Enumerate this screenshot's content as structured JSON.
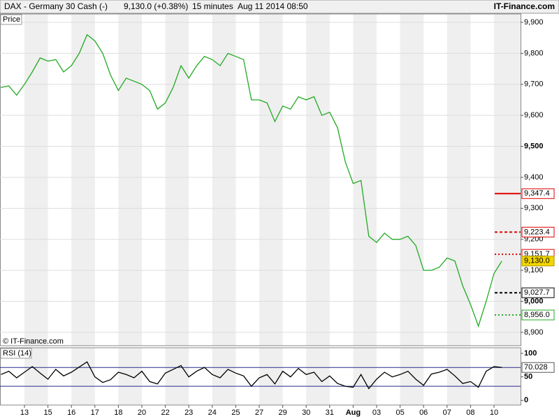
{
  "header": {
    "instrument": "DAX - Germany 30 Cash (-)",
    "quote": "9,130.0 (+0.38%)",
    "interval": "15 minutes",
    "datetime": "Aug 11 2014 08:50",
    "brand": "IT-Finance.com"
  },
  "chart_data": [
    {
      "type": "line",
      "title": "Price",
      "source": "© IT-Finance.com",
      "color": "#22aa22",
      "categories": [
        null,
        null,
        null,
        "13",
        null,
        null,
        "15",
        null,
        null,
        "16",
        null,
        null,
        "17",
        null,
        null,
        "18",
        null,
        null,
        "20",
        null,
        null,
        "22",
        null,
        null,
        "23",
        null,
        null,
        "24",
        null,
        null,
        "25",
        null,
        null,
        "27",
        null,
        null,
        "29",
        null,
        null,
        "30",
        null,
        null,
        "31",
        null,
        null,
        "Aug",
        null,
        null,
        "03",
        null,
        null,
        "05",
        null,
        null,
        "06",
        null,
        null,
        "07",
        null,
        null,
        "08",
        null,
        null,
        "10",
        null
      ],
      "values": [
        9690,
        9695,
        9665,
        9700,
        9740,
        9785,
        9775,
        9780,
        9740,
        9760,
        9800,
        9860,
        9840,
        9800,
        9730,
        9680,
        9720,
        9710,
        9700,
        9680,
        9620,
        9640,
        9690,
        9760,
        9720,
        9760,
        9790,
        9780,
        9760,
        9800,
        9790,
        9780,
        9650,
        9650,
        9640,
        9580,
        9630,
        9620,
        9660,
        9650,
        9660,
        9600,
        9610,
        9560,
        9450,
        9380,
        9390,
        9210,
        9190,
        9220,
        9200,
        9200,
        9210,
        9180,
        9100,
        9100,
        9110,
        9140,
        9130,
        9050,
        8990,
        8920,
        9000,
        9090,
        9130
      ],
      "ylim": [
        8857,
        9927
      ],
      "yticks": [
        {
          "value": 8900,
          "label": "8,900"
        },
        {
          "value": 9000,
          "label": "9,000"
        },
        {
          "value": 9100,
          "label": "9,100"
        },
        {
          "value": 9200,
          "label": "9,200"
        },
        {
          "value": 9300,
          "label": "9,300"
        },
        {
          "value": 9400,
          "label": "9,400"
        },
        {
          "value": 9500,
          "label": "9,500"
        },
        {
          "value": 9600,
          "label": "9,600"
        },
        {
          "value": 9700,
          "label": "9,700"
        },
        {
          "value": 9800,
          "label": "9,800"
        },
        {
          "value": 9900,
          "label": "9,900"
        }
      ],
      "grid": true,
      "levels": [
        {
          "value": 9347.4,
          "label": "9,347.4",
          "color": "#e00000",
          "style": "solid"
        },
        {
          "value": 9223.4,
          "label": "9,223.4",
          "color": "#e00000",
          "style": "dashed"
        },
        {
          "value": 9151.7,
          "label": "9,151.7",
          "color": "#e00000",
          "style": "dotted"
        },
        {
          "value": 9130.0,
          "label": "9,130.0",
          "color": "#f2d500",
          "style": "box"
        },
        {
          "value": 9027.7,
          "label": "9,027.7",
          "color": "#000000",
          "style": "dashed"
        },
        {
          "value": 8956.0,
          "label": "8,956.0",
          "color": "#22aa22",
          "style": "dotted"
        }
      ]
    },
    {
      "type": "line",
      "title": "RSI (14)",
      "color": "#000000",
      "values": [
        55,
        62,
        48,
        60,
        72,
        58,
        45,
        66,
        52,
        60,
        71,
        82,
        50,
        38,
        44,
        60,
        55,
        48,
        62,
        40,
        35,
        58,
        66,
        74,
        50,
        62,
        70,
        55,
        48,
        66,
        58,
        52,
        30,
        48,
        55,
        35,
        62,
        50,
        68,
        55,
        60,
        40,
        52,
        36,
        30,
        28,
        55,
        25,
        45,
        60,
        50,
        55,
        62,
        45,
        32,
        56,
        60,
        66,
        52,
        36,
        40,
        28,
        62,
        72,
        70.028
      ],
      "value_labels": [
        null,
        null,
        null,
        null,
        null,
        null,
        null,
        null,
        null,
        null,
        null,
        null,
        null,
        null,
        null,
        null,
        null,
        null,
        null,
        null,
        null,
        null,
        null,
        null,
        null,
        null,
        null,
        null,
        null,
        null,
        null,
        null,
        null,
        null,
        null,
        null,
        null,
        null,
        null,
        null,
        null,
        null,
        null,
        null,
        null,
        null,
        null,
        null,
        null,
        null,
        null,
        null,
        null,
        null,
        null,
        null,
        null,
        null,
        null,
        null,
        null,
        null,
        null,
        null,
        "70.028"
      ],
      "ylim": [
        -10,
        112
      ],
      "yticks": [
        0,
        50,
        100
      ],
      "levels": [
        70,
        30
      ],
      "level_color": "#2a2a8a"
    }
  ]
}
